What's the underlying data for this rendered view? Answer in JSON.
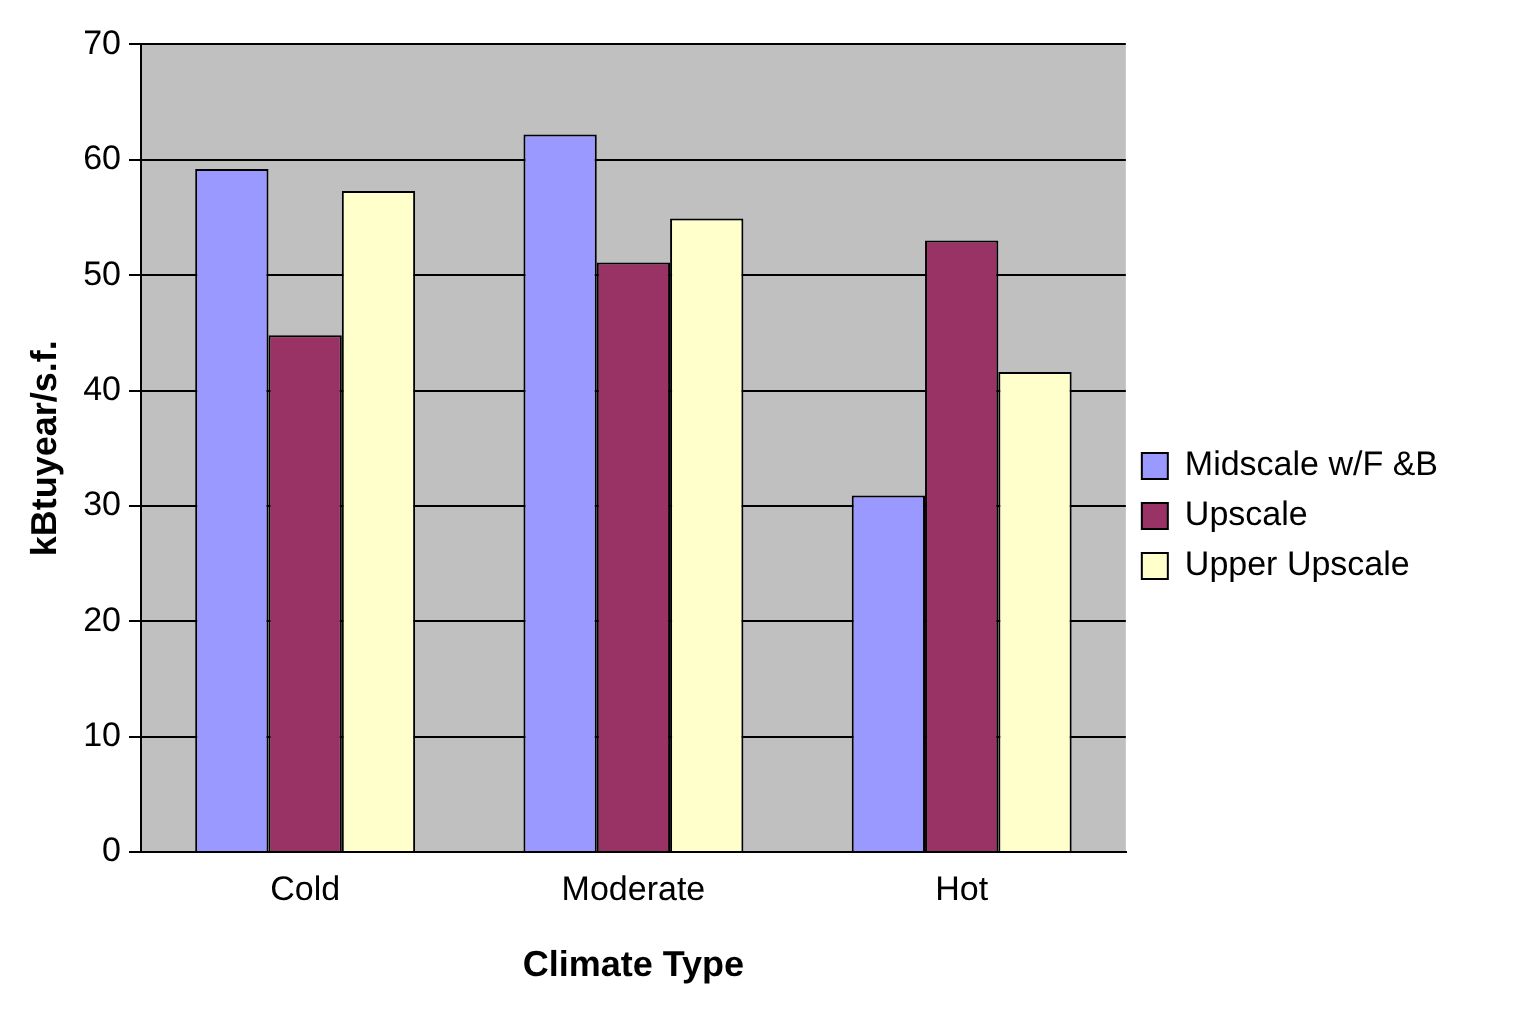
{
  "chart_data": {
    "type": "bar",
    "xlabel": "Climate Type",
    "ylabel": "kBtuyear/s.f.",
    "categories": [
      "Cold",
      "Moderate",
      "Hot"
    ],
    "series": [
      {
        "name": "Midscale w/F &B",
        "color": "#9999ff",
        "values": [
          59.2,
          62.2,
          30.9
        ]
      },
      {
        "name": "Upscale",
        "color": "#993366",
        "values": [
          44.8,
          51.1,
          53.0
        ]
      },
      {
        "name": "Upper Upscale",
        "color": "#ffffcc",
        "values": [
          57.3,
          54.9,
          41.6
        ]
      }
    ],
    "ylim": [
      0,
      70
    ],
    "yticks": [
      0,
      10,
      20,
      30,
      40,
      50,
      60,
      70
    ],
    "grid": "y",
    "legend": "right"
  }
}
